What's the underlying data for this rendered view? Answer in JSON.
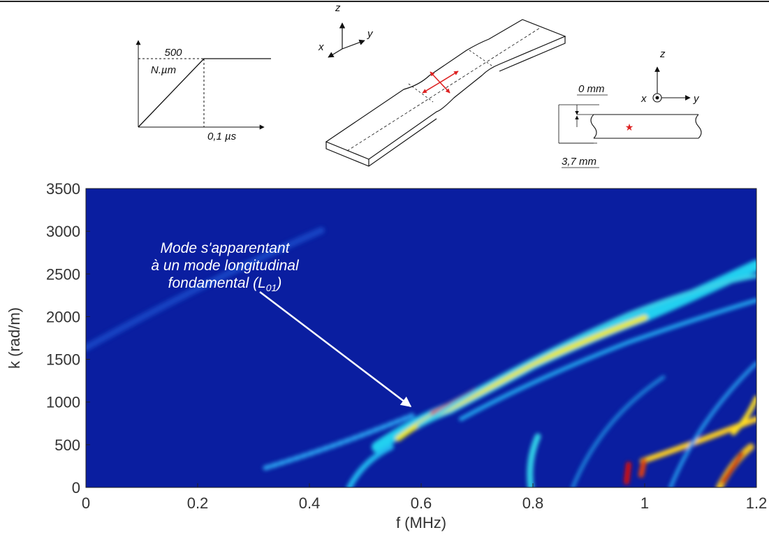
{
  "chart_data": {
    "type": "heatmap",
    "xlabel": "f (MHz)",
    "ylabel": "k (rad/m)",
    "xlim": [
      0,
      1.2
    ],
    "xticks": [
      0,
      0.2,
      0.4,
      0.6,
      0.8,
      1,
      1.2
    ],
    "ylim": [
      0,
      3500
    ],
    "yticks": [
      0,
      500,
      1000,
      1500,
      2000,
      2500,
      3000,
      3500
    ],
    "annotation": {
      "lines": [
        "Mode s'apparentant",
        "à un mode longitudinal"
      ],
      "last_line": [
        "fondamental (L",
        "01",
        ")"
      ]
    }
  },
  "insets": {
    "load": {
      "y_value": "500",
      "y_unit": "N.µm",
      "x_label": "0,1 µs"
    },
    "specimen": {
      "axes": [
        "z",
        "x",
        "y"
      ]
    },
    "section": {
      "axes": [
        "z",
        "x",
        "y"
      ],
      "top": "0 mm",
      "bottom": "3,7 mm"
    }
  }
}
